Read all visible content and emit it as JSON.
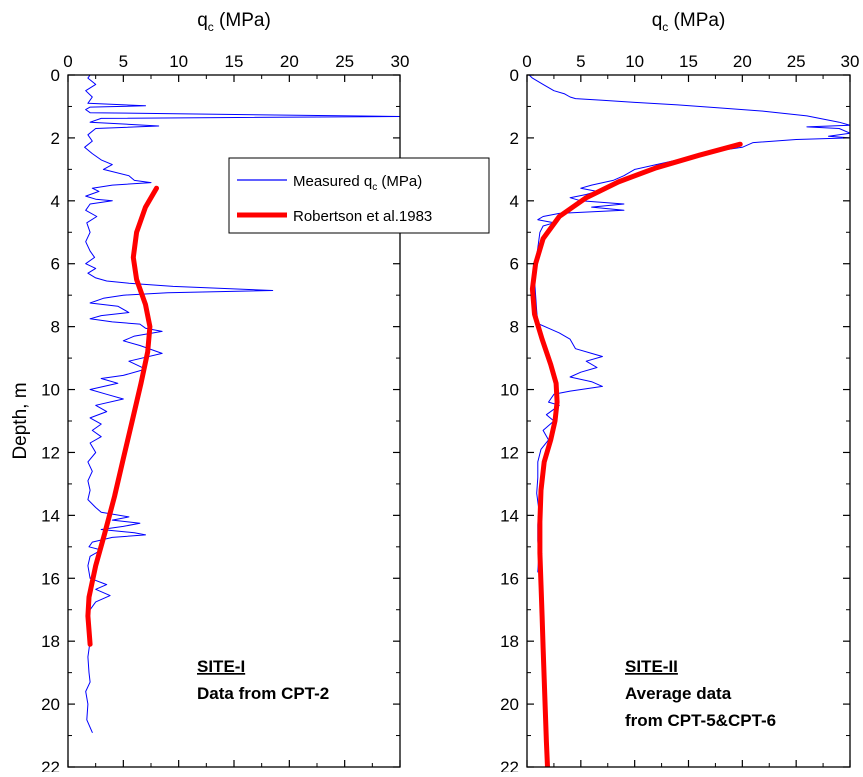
{
  "chart_data": [
    {
      "type": "line",
      "title": "",
      "xlabel": "q",
      "xlabel_sub": "c",
      "xlabel_unit": " (MPa)",
      "ylabel": "Depth, m",
      "xlim": [
        0,
        30
      ],
      "ylim": [
        0,
        22
      ],
      "y_inverted": true,
      "x_axis_position": "top",
      "xticks": [
        "0",
        "5",
        "10",
        "15",
        "20",
        "25",
        "30"
      ],
      "yticks": [
        "0",
        "2",
        "4",
        "6",
        "8",
        "10",
        "12",
        "14",
        "16",
        "18",
        "20",
        "22"
      ],
      "grid": false,
      "annotation": {
        "title": "SITE-I",
        "lines": [
          "Data from CPT-2"
        ]
      },
      "legend": {
        "position": "top-right",
        "entries": [
          {
            "label": "Measured q",
            "sub": "c",
            "suffix": " (MPa)",
            "color": "#0000ff",
            "style": "thin"
          },
          {
            "label": "Robertson et al.1983",
            "sub": "",
            "suffix": "",
            "color": "#ff0000",
            "style": "thick"
          }
        ]
      },
      "series": [
        {
          "key": "measured",
          "color": "#0000ff",
          "width": 1,
          "points": [
            [
              2.0,
              0.0
            ],
            [
              1.8,
              0.1
            ],
            [
              2.5,
              0.3
            ],
            [
              1.6,
              0.5
            ],
            [
              2.2,
              0.7
            ],
            [
              1.8,
              0.9
            ],
            [
              7.0,
              0.98
            ],
            [
              2.0,
              1.02
            ],
            [
              1.6,
              1.1
            ],
            [
              2.0,
              1.2
            ],
            [
              30,
              1.32
            ],
            [
              3.0,
              1.38
            ],
            [
              2.0,
              1.5
            ],
            [
              8.2,
              1.62
            ],
            [
              2.5,
              1.7
            ],
            [
              1.8,
              1.9
            ],
            [
              2.2,
              2.1
            ],
            [
              1.5,
              2.3
            ],
            [
              2.2,
              2.5
            ],
            [
              3.0,
              2.7
            ],
            [
              4.0,
              2.85
            ],
            [
              3.2,
              3.0
            ],
            [
              5.5,
              3.2
            ],
            [
              6.0,
              3.35
            ],
            [
              7.5,
              3.42
            ],
            [
              4.0,
              3.5
            ],
            [
              2.2,
              3.6
            ],
            [
              2.8,
              3.7
            ],
            [
              1.6,
              3.85
            ],
            [
              2.5,
              3.95
            ],
            [
              4.0,
              4.0
            ],
            [
              2.0,
              4.1
            ],
            [
              1.6,
              4.3
            ],
            [
              2.6,
              4.5
            ],
            [
              1.7,
              4.7
            ],
            [
              2.0,
              5.0
            ],
            [
              1.6,
              5.3
            ],
            [
              2.0,
              5.6
            ],
            [
              2.4,
              5.8
            ],
            [
              1.6,
              6.0
            ],
            [
              2.5,
              6.15
            ],
            [
              1.8,
              6.3
            ],
            [
              2.5,
              6.45
            ],
            [
              3.5,
              6.55
            ],
            [
              5.5,
              6.62
            ],
            [
              9.5,
              6.72
            ],
            [
              18.5,
              6.85
            ],
            [
              9.0,
              6.92
            ],
            [
              5.0,
              7.0
            ],
            [
              3.2,
              7.1
            ],
            [
              2.0,
              7.25
            ],
            [
              4.5,
              7.35
            ],
            [
              5.5,
              7.55
            ],
            [
              3.0,
              7.65
            ],
            [
              2.0,
              7.75
            ],
            [
              4.0,
              7.85
            ],
            [
              6.5,
              7.92
            ],
            [
              7.0,
              8.05
            ],
            [
              8.5,
              8.15
            ],
            [
              6.0,
              8.3
            ],
            [
              5.0,
              8.45
            ],
            [
              6.5,
              8.6
            ],
            [
              8.5,
              8.85
            ],
            [
              5.5,
              9.1
            ],
            [
              7.0,
              9.35
            ],
            [
              5.0,
              9.55
            ],
            [
              3.0,
              9.65
            ],
            [
              4.5,
              9.8
            ],
            [
              2.0,
              10.0
            ],
            [
              3.5,
              10.15
            ],
            [
              5.0,
              10.3
            ],
            [
              2.5,
              10.5
            ],
            [
              3.5,
              10.7
            ],
            [
              2.0,
              10.9
            ],
            [
              3.0,
              11.1
            ],
            [
              2.2,
              11.3
            ],
            [
              3.0,
              11.5
            ],
            [
              2.0,
              11.7
            ],
            [
              2.5,
              12.0
            ],
            [
              1.8,
              12.3
            ],
            [
              2.2,
              12.6
            ],
            [
              1.8,
              12.9
            ],
            [
              2.0,
              13.2
            ],
            [
              1.8,
              13.5
            ],
            [
              2.5,
              13.75
            ],
            [
              3.0,
              13.9
            ],
            [
              5.5,
              14.05
            ],
            [
              4.0,
              14.15
            ],
            [
              6.5,
              14.25
            ],
            [
              5.0,
              14.35
            ],
            [
              3.0,
              14.45
            ],
            [
              6.0,
              14.55
            ],
            [
              7.0,
              14.62
            ],
            [
              4.0,
              14.7
            ],
            [
              2.2,
              14.85
            ],
            [
              1.9,
              15.0
            ],
            [
              3.0,
              15.1
            ],
            [
              2.0,
              15.3
            ],
            [
              1.8,
              15.6
            ],
            [
              2.0,
              16.0
            ],
            [
              3.5,
              16.2
            ],
            [
              2.5,
              16.35
            ],
            [
              3.8,
              16.55
            ],
            [
              2.5,
              16.75
            ],
            [
              2.0,
              17.0
            ],
            [
              1.8,
              17.5
            ],
            [
              2.0,
              18.0
            ],
            [
              1.8,
              18.5
            ],
            [
              1.9,
              19.0
            ],
            [
              2.0,
              19.3
            ],
            [
              1.6,
              19.6
            ],
            [
              1.8,
              20.0
            ],
            [
              1.7,
              20.5
            ],
            [
              2.2,
              20.9
            ]
          ]
        },
        {
          "key": "robertson",
          "color": "#ff0000",
          "width": 5,
          "points": [
            [
              8.0,
              3.6
            ],
            [
              7.0,
              4.2
            ],
            [
              6.2,
              5.0
            ],
            [
              5.9,
              5.8
            ],
            [
              6.2,
              6.5
            ],
            [
              7.0,
              7.3
            ],
            [
              7.4,
              8.0
            ],
            [
              7.2,
              8.8
            ],
            [
              6.6,
              9.8
            ],
            [
              5.8,
              11.0
            ],
            [
              5.0,
              12.2
            ],
            [
              4.2,
              13.4
            ],
            [
              3.3,
              14.6
            ],
            [
              2.5,
              15.6
            ],
            [
              1.9,
              16.6
            ],
            [
              1.8,
              17.2
            ],
            [
              2.0,
              18.1
            ]
          ]
        }
      ]
    },
    {
      "type": "line",
      "title": "",
      "xlabel": "q",
      "xlabel_sub": "c",
      "xlabel_unit": " (MPa)",
      "ylabel": "",
      "xlim": [
        0,
        30
      ],
      "ylim": [
        0,
        22
      ],
      "y_inverted": true,
      "x_axis_position": "top",
      "xticks": [
        "0",
        "5",
        "10",
        "15",
        "20",
        "25",
        "30"
      ],
      "yticks": [
        "0",
        "2",
        "4",
        "6",
        "8",
        "10",
        "12",
        "14",
        "16",
        "18",
        "20",
        "22"
      ],
      "grid": false,
      "annotation": {
        "title": "SITE-II",
        "lines": [
          "Average data",
          "from CPT-5&CPT-6"
        ]
      },
      "series": [
        {
          "key": "measured",
          "color": "#0000ff",
          "width": 1,
          "points": [
            [
              0.2,
              0.0
            ],
            [
              0.5,
              0.1
            ],
            [
              1.5,
              0.3
            ],
            [
              2.5,
              0.5
            ],
            [
              3.5,
              0.6
            ],
            [
              4.0,
              0.7
            ],
            [
              4.5,
              0.75
            ],
            [
              7.0,
              0.8
            ],
            [
              10,
              0.87
            ],
            [
              14,
              0.95
            ],
            [
              18,
              1.05
            ],
            [
              22,
              1.15
            ],
            [
              26,
              1.3
            ],
            [
              29,
              1.5
            ],
            [
              30,
              1.6
            ],
            [
              26,
              1.65
            ],
            [
              29,
              1.7
            ],
            [
              30,
              1.85
            ],
            [
              28,
              1.95
            ],
            [
              30,
              2.0
            ],
            [
              25,
              2.05
            ],
            [
              21,
              2.15
            ],
            [
              20,
              2.3
            ],
            [
              16,
              2.5
            ],
            [
              14,
              2.7
            ],
            [
              12,
              2.85
            ],
            [
              10,
              3.0
            ],
            [
              9.0,
              3.2
            ],
            [
              8.0,
              3.35
            ],
            [
              6.0,
              3.5
            ],
            [
              5.0,
              3.6
            ],
            [
              6.5,
              3.7
            ],
            [
              5.5,
              3.8
            ],
            [
              4.0,
              3.9
            ],
            [
              5.0,
              4.0
            ],
            [
              9.0,
              4.1
            ],
            [
              6.0,
              4.2
            ],
            [
              9.0,
              4.3
            ],
            [
              3.0,
              4.4
            ],
            [
              1.5,
              4.5
            ],
            [
              1.0,
              4.6
            ],
            [
              2.5,
              4.7
            ],
            [
              1.5,
              4.8
            ],
            [
              1.2,
              5.0
            ],
            [
              1.0,
              5.5
            ],
            [
              0.8,
              6.0
            ],
            [
              0.7,
              6.5
            ],
            [
              0.8,
              7.0
            ],
            [
              0.9,
              7.5
            ],
            [
              1.0,
              7.9
            ],
            [
              2.0,
              8.05
            ],
            [
              3.0,
              8.2
            ],
            [
              4.0,
              8.4
            ],
            [
              4.5,
              8.7
            ],
            [
              6.0,
              8.85
            ],
            [
              7.0,
              8.95
            ],
            [
              5.5,
              9.1
            ],
            [
              6.5,
              9.3
            ],
            [
              5.0,
              9.45
            ],
            [
              4.0,
              9.6
            ],
            [
              6.0,
              9.75
            ],
            [
              7.0,
              9.9
            ],
            [
              4.0,
              10.05
            ],
            [
              2.5,
              10.15
            ],
            [
              2.0,
              10.4
            ],
            [
              3.0,
              10.5
            ],
            [
              1.8,
              10.8
            ],
            [
              2.5,
              11.0
            ],
            [
              1.5,
              11.3
            ],
            [
              2.0,
              11.6
            ],
            [
              1.3,
              11.9
            ],
            [
              1.0,
              12.3
            ],
            [
              1.0,
              12.8
            ],
            [
              0.9,
              13.3
            ],
            [
              1.1,
              13.8
            ],
            [
              1.0,
              14.3
            ],
            [
              1.0,
              14.8
            ],
            [
              1.1,
              15.3
            ],
            [
              1.0,
              15.8
            ]
          ]
        },
        {
          "key": "robertson",
          "color": "#ff0000",
          "width": 5,
          "points": [
            [
              19.8,
              2.2
            ],
            [
              16.0,
              2.55
            ],
            [
              12.0,
              2.95
            ],
            [
              8.5,
              3.4
            ],
            [
              5.5,
              3.9
            ],
            [
              3.0,
              4.5
            ],
            [
              1.5,
              5.2
            ],
            [
              0.8,
              6.0
            ],
            [
              0.5,
              6.8
            ],
            [
              0.7,
              7.6
            ],
            [
              1.4,
              8.4
            ],
            [
              2.2,
              9.2
            ],
            [
              2.7,
              9.8
            ],
            [
              2.8,
              10.4
            ],
            [
              2.6,
              11.0
            ],
            [
              2.2,
              11.6
            ],
            [
              1.6,
              12.3
            ],
            [
              1.3,
              13.2
            ],
            [
              1.2,
              14.2
            ],
            [
              1.2,
              15.2
            ],
            [
              1.3,
              16.2
            ],
            [
              1.4,
              17.2
            ],
            [
              1.5,
              18.2
            ],
            [
              1.6,
              19.2
            ],
            [
              1.7,
              20.2
            ],
            [
              1.8,
              21.2
            ],
            [
              1.9,
              22.0
            ]
          ]
        }
      ]
    }
  ]
}
